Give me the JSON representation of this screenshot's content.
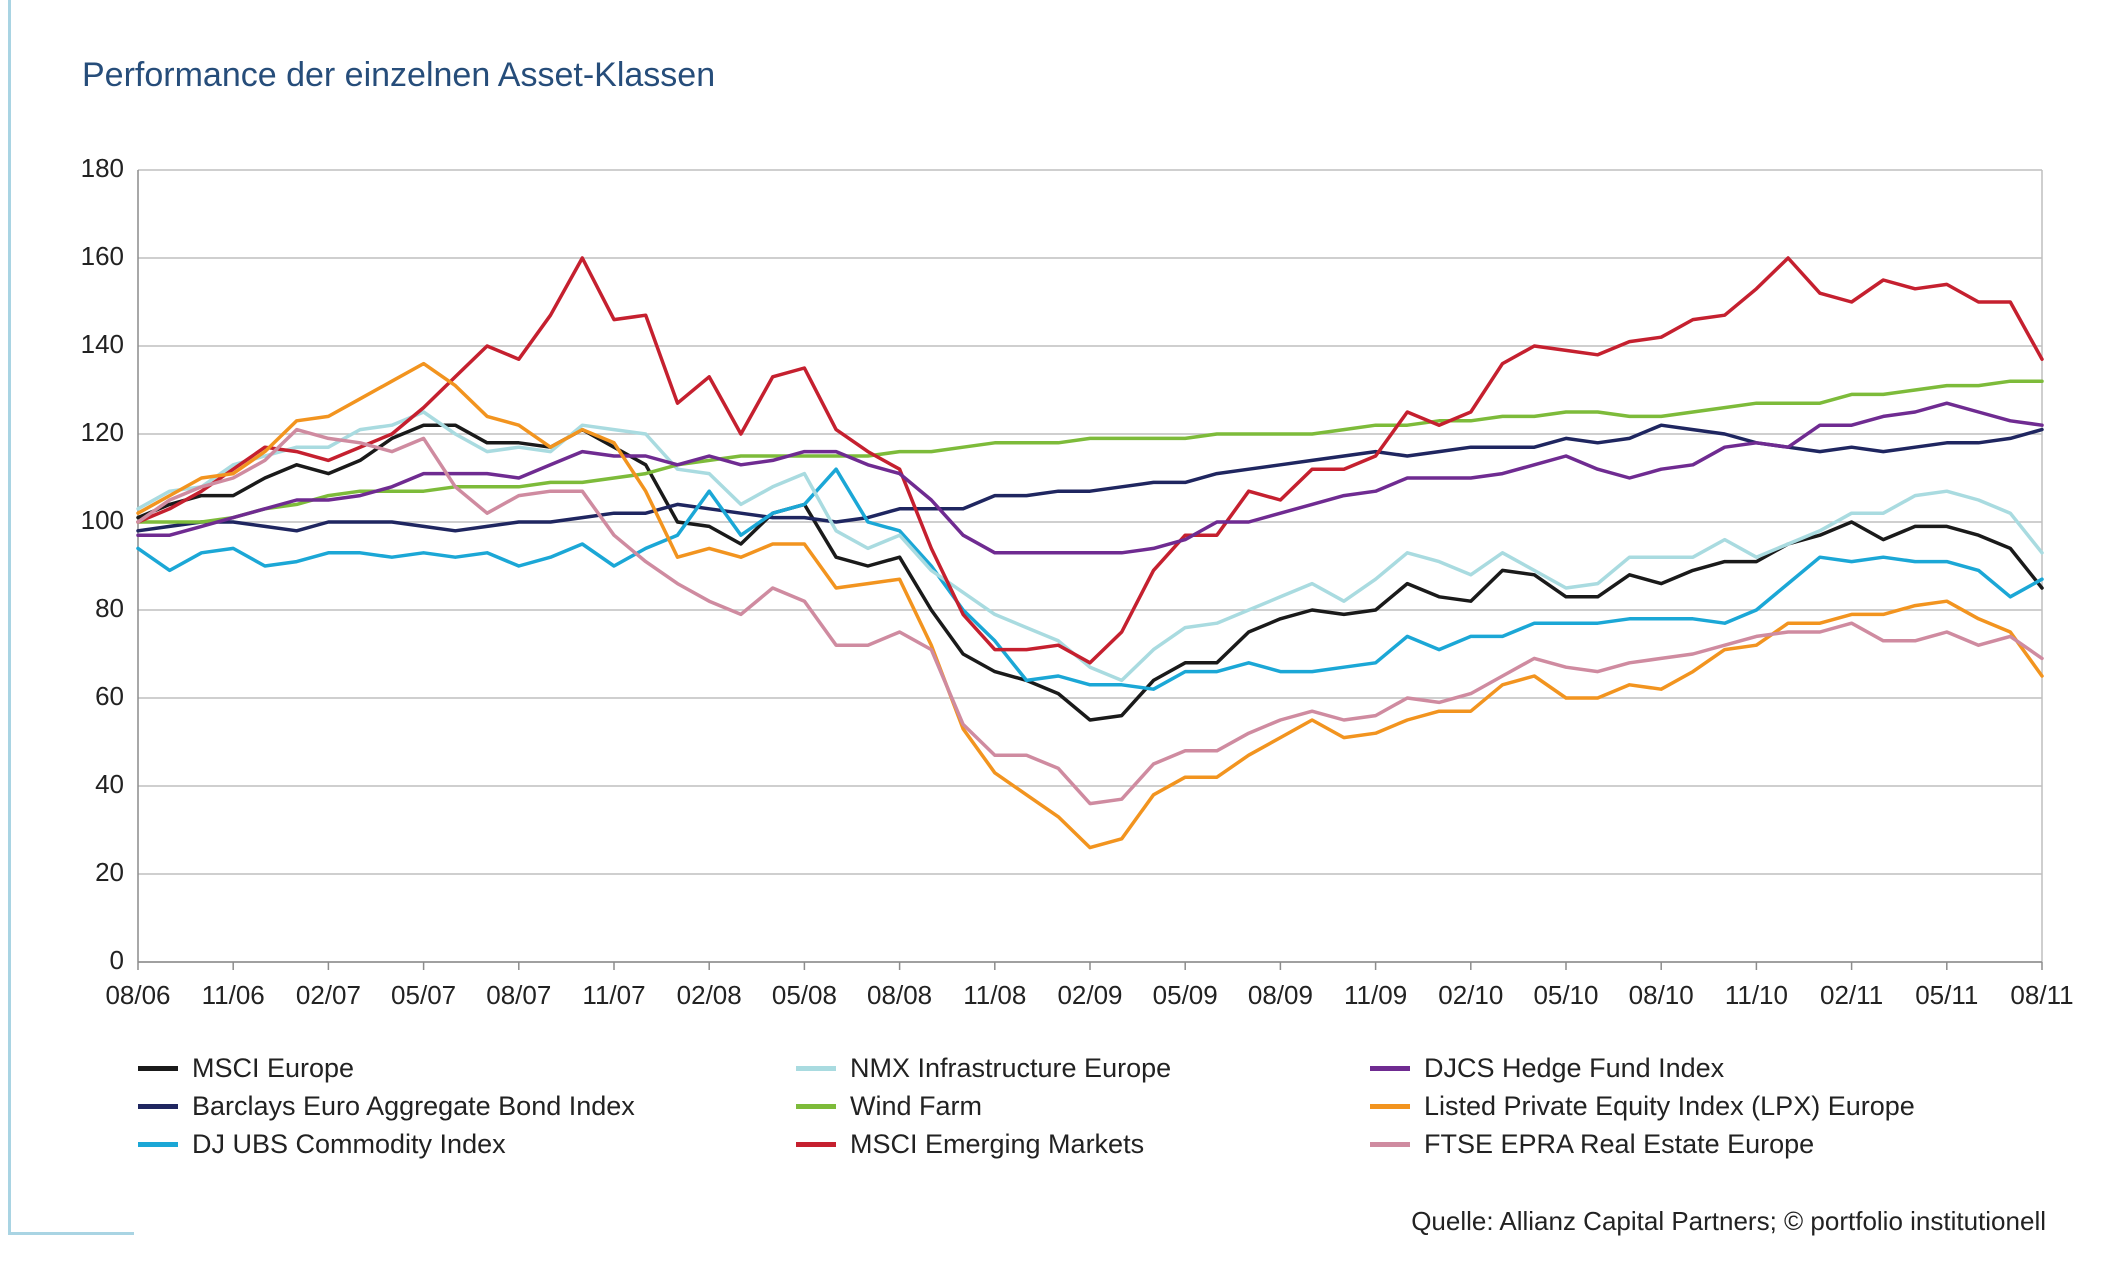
{
  "title": "Performance der einzelnen Asset-Klassen",
  "source": "Quelle: Allianz Capital Partners; © portfolio institutionell",
  "chart_data": {
    "type": "line",
    "title": "Performance der einzelnen Asset-Klassen",
    "xlabel": "",
    "ylabel": "",
    "ylim": [
      0,
      180
    ],
    "yticks": [
      "0",
      "20",
      "40",
      "60",
      "80",
      "100",
      "120",
      "140",
      "160",
      "180"
    ],
    "x_tick_labels": [
      "08/06",
      "11/06",
      "02/07",
      "05/07",
      "08/07",
      "11/07",
      "02/08",
      "05/08",
      "08/08",
      "11/08",
      "02/09",
      "05/09",
      "08/09",
      "11/09",
      "02/10",
      "05/10",
      "08/10",
      "11/10",
      "02/11",
      "05/11",
      "08/11"
    ],
    "grid": true,
    "legend_position": "bottom",
    "series": [
      {
        "name": "MSCI Europe",
        "color": "#1a1a1a",
        "values": [
          101,
          104,
          106,
          106,
          110,
          113,
          111,
          114,
          119,
          122,
          122,
          118,
          118,
          117,
          121,
          117,
          113,
          100,
          99,
          95,
          102,
          104,
          92,
          90,
          92,
          80,
          70,
          66,
          64,
          61,
          55,
          56,
          64,
          68,
          68,
          75,
          78,
          80,
          79,
          80,
          86,
          83,
          82,
          89,
          88,
          83,
          83,
          88,
          86,
          89,
          91,
          91,
          95,
          97,
          100,
          96,
          99,
          99,
          97,
          94,
          85
        ]
      },
      {
        "name": "Barclays Euro Aggregate Bond Index",
        "color": "#1f2660",
        "values": [
          98,
          99,
          100,
          100,
          99,
          98,
          100,
          100,
          100,
          99,
          98,
          99,
          100,
          100,
          101,
          102,
          102,
          104,
          103,
          102,
          101,
          101,
          100,
          101,
          103,
          103,
          103,
          106,
          106,
          107,
          107,
          108,
          109,
          109,
          111,
          112,
          113,
          114,
          115,
          116,
          115,
          116,
          117,
          117,
          117,
          119,
          118,
          119,
          122,
          121,
          120,
          118,
          117,
          116,
          117,
          116,
          117,
          118,
          118,
          119,
          121
        ]
      },
      {
        "name": "DJ UBS Commodity Index",
        "color": "#1ba7d6",
        "values": [
          94,
          89,
          93,
          94,
          90,
          91,
          93,
          93,
          92,
          93,
          92,
          93,
          90,
          92,
          95,
          90,
          94,
          97,
          107,
          97,
          102,
          104,
          112,
          100,
          98,
          90,
          80,
          73,
          64,
          65,
          63,
          63,
          62,
          66,
          66,
          68,
          66,
          66,
          67,
          68,
          74,
          71,
          74,
          74,
          77,
          77,
          77,
          78,
          78,
          78,
          77,
          80,
          86,
          92,
          91,
          92,
          91,
          91,
          89,
          83,
          87
        ]
      },
      {
        "name": "NMX Infrastructure Europe",
        "color": "#a9dbe0",
        "values": [
          103,
          107,
          108,
          113,
          115,
          117,
          117,
          121,
          122,
          125,
          120,
          116,
          117,
          116,
          122,
          121,
          120,
          112,
          111,
          104,
          108,
          111,
          98,
          94,
          97,
          89,
          84,
          79,
          76,
          73,
          67,
          64,
          71,
          76,
          77,
          80,
          83,
          86,
          82,
          87,
          93,
          91,
          88,
          93,
          89,
          85,
          86,
          92,
          92,
          92,
          96,
          92,
          95,
          98,
          102,
          102,
          106,
          107,
          105,
          102,
          93
        ]
      },
      {
        "name": "Wind Farm",
        "color": "#7dbb3a",
        "values": [
          100,
          100,
          100,
          101,
          103,
          104,
          106,
          107,
          107,
          107,
          108,
          108,
          108,
          109,
          109,
          110,
          111,
          113,
          114,
          115,
          115,
          115,
          115,
          115,
          116,
          116,
          117,
          118,
          118,
          118,
          119,
          119,
          119,
          119,
          120,
          120,
          120,
          120,
          121,
          122,
          122,
          123,
          123,
          124,
          124,
          125,
          125,
          124,
          124,
          125,
          126,
          127,
          127,
          127,
          129,
          129,
          130,
          131,
          131,
          132,
          132
        ]
      },
      {
        "name": "MSCI Emerging Markets",
        "color": "#c5202f",
        "values": [
          100,
          103,
          107,
          112,
          117,
          116,
          114,
          117,
          120,
          126,
          133,
          140,
          137,
          147,
          160,
          146,
          147,
          127,
          133,
          120,
          133,
          135,
          121,
          116,
          112,
          94,
          79,
          71,
          71,
          72,
          68,
          75,
          89,
          97,
          97,
          107,
          105,
          112,
          112,
          115,
          125,
          122,
          125,
          136,
          140,
          139,
          138,
          141,
          142,
          146,
          147,
          153,
          160,
          152,
          150,
          155,
          153,
          154,
          150,
          150,
          137
        ]
      },
      {
        "name": "DJCS Hedge Fund Index",
        "color": "#6f2b91",
        "values": [
          97,
          97,
          99,
          101,
          103,
          105,
          105,
          106,
          108,
          111,
          111,
          111,
          110,
          113,
          116,
          115,
          115,
          113,
          115,
          113,
          114,
          116,
          116,
          113,
          111,
          105,
          97,
          93,
          93,
          93,
          93,
          93,
          94,
          96,
          100,
          100,
          102,
          104,
          106,
          107,
          110,
          110,
          110,
          111,
          113,
          115,
          112,
          110,
          112,
          113,
          117,
          118,
          117,
          122,
          122,
          124,
          125,
          127,
          125,
          123,
          122
        ]
      },
      {
        "name": "Listed Private Equity Index (LPX) Europe",
        "color": "#f2941f",
        "values": [
          102,
          106,
          110,
          111,
          116,
          123,
          124,
          128,
          132,
          136,
          131,
          124,
          122,
          117,
          121,
          118,
          107,
          92,
          94,
          92,
          95,
          95,
          85,
          86,
          87,
          72,
          53,
          43,
          38,
          33,
          26,
          28,
          38,
          42,
          42,
          47,
          51,
          55,
          51,
          52,
          55,
          57,
          57,
          63,
          65,
          60,
          60,
          63,
          62,
          66,
          71,
          72,
          77,
          77,
          79,
          79,
          81,
          82,
          78,
          75,
          65
        ]
      },
      {
        "name": "FTSE EPRA Real Estate Europe",
        "color": "#cf8ba0",
        "values": [
          100,
          105,
          108,
          110,
          114,
          121,
          119,
          118,
          116,
          119,
          108,
          102,
          106,
          107,
          107,
          97,
          91,
          86,
          82,
          79,
          85,
          82,
          72,
          72,
          75,
          71,
          54,
          47,
          47,
          44,
          36,
          37,
          45,
          48,
          48,
          52,
          55,
          57,
          55,
          56,
          60,
          59,
          61,
          65,
          69,
          67,
          66,
          68,
          69,
          70,
          72,
          74,
          75,
          75,
          77,
          73,
          73,
          75,
          72,
          74,
          69
        ]
      }
    ]
  },
  "legend": [
    {
      "label": "MSCI Europe",
      "color": "#1a1a1a"
    },
    {
      "label": "NMX Infrastructure Europe",
      "color": "#a9dbe0"
    },
    {
      "label": "DJCS Hedge Fund Index",
      "color": "#6f2b91"
    },
    {
      "label": "Barclays Euro Aggregate Bond Index",
      "color": "#1f2660"
    },
    {
      "label": "Wind Farm",
      "color": "#7dbb3a"
    },
    {
      "label": "Listed Private Equity Index (LPX) Europe",
      "color": "#f2941f"
    },
    {
      "label": "DJ UBS Commodity Index",
      "color": "#1ba7d6"
    },
    {
      "label": "MSCI Emerging Markets",
      "color": "#c5202f"
    },
    {
      "label": "FTSE EPRA Real Estate Europe",
      "color": "#cf8ba0"
    }
  ]
}
